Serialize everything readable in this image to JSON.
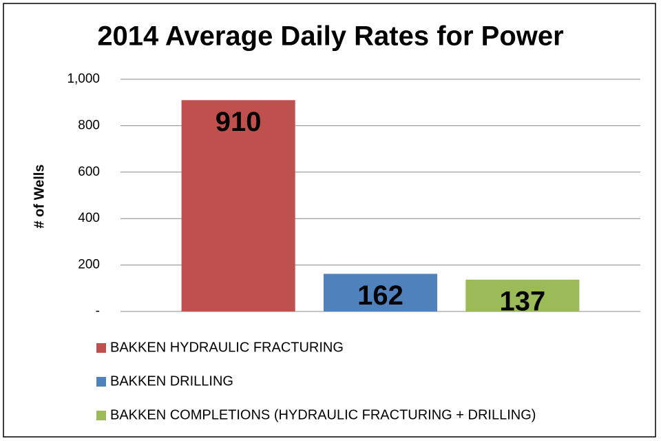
{
  "chart_data": {
    "type": "bar",
    "title": "2014 Average Daily Rates for Power",
    "y_label": "# of Wells",
    "categories": [
      null
    ],
    "series": [
      {
        "name": "BAKKEN HYDRAULIC FRACTURING",
        "color": "#c0504d",
        "values": [
          910
        ]
      },
      {
        "name": "BAKKEN DRILLING",
        "color": "#4f81bd",
        "values": [
          162
        ]
      },
      {
        "name": "BAKKEN COMPLETIONS (HYDRAULIC FRACTURING + DRILLING)",
        "color": "#9bbb59",
        "values": [
          137
        ]
      }
    ],
    "ylim": [
      0,
      1000
    ],
    "yticks": [
      {
        "value": 0,
        "label": "-"
      },
      200,
      400,
      600,
      800,
      {
        "value": 1000,
        "label": "1,000"
      }
    ],
    "grid": true,
    "data_labels": true,
    "legend": "bottom"
  }
}
